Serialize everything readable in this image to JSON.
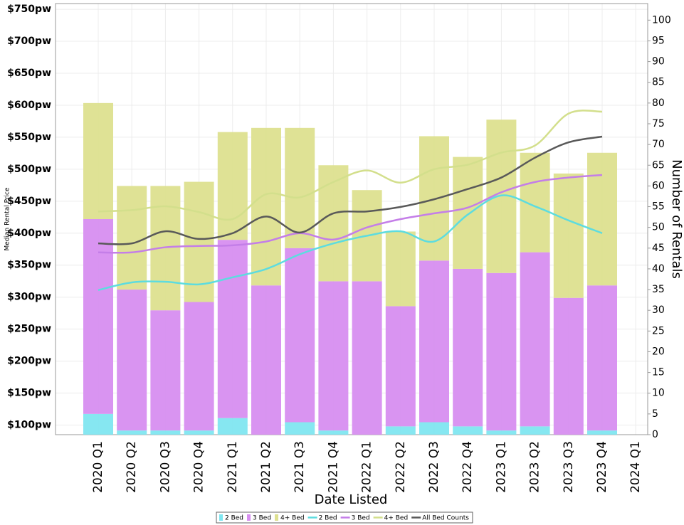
{
  "chart_data": {
    "type": "combo",
    "x_label": "Date Listed",
    "y_label": "Median Rental Price",
    "y2_label": "Number of Rentals",
    "categories": [
      "2020 Q1",
      "2020 Q2",
      "2020 Q3",
      "2020 Q4",
      "2021 Q1",
      "2021 Q2",
      "2021 Q3",
      "2021 Q4",
      "2022 Q1",
      "2022 Q2",
      "2022 Q3",
      "2022 Q4",
      "2023 Q1",
      "2023 Q2",
      "2023 Q3",
      "2023 Q4",
      "2024 Q1"
    ],
    "ylim": [
      85,
      759
    ],
    "yticks": [
      {
        "value": 100,
        "label": "$100pw"
      },
      {
        "value": 150,
        "label": "$150pw"
      },
      {
        "value": 200,
        "label": "$200pw"
      },
      {
        "value": 250,
        "label": "$250pw"
      },
      {
        "value": 300,
        "label": "$300pw"
      },
      {
        "value": 350,
        "label": "$350pw"
      },
      {
        "value": 400,
        "label": "$400pw"
      },
      {
        "value": 450,
        "label": "$450pw"
      },
      {
        "value": 500,
        "label": "$500pw"
      },
      {
        "value": 550,
        "label": "$550pw"
      },
      {
        "value": 600,
        "label": "$600pw"
      },
      {
        "value": 650,
        "label": "$650pw"
      },
      {
        "value": 700,
        "label": "$700pw"
      },
      {
        "value": 750,
        "label": "$750pw"
      }
    ],
    "y2lim": [
      0,
      104
    ],
    "y2ticks": [
      0,
      5,
      10,
      15,
      20,
      25,
      30,
      35,
      40,
      45,
      50,
      55,
      60,
      65,
      70,
      75,
      80,
      85,
      90,
      95,
      100
    ],
    "grid": true,
    "series": [
      {
        "name": "2 Bed",
        "kind": "bar",
        "axis": "y2",
        "color": "#7fe6f0",
        "values": [
          5,
          1,
          1,
          1,
          4,
          0,
          3,
          1,
          0,
          2,
          3,
          2,
          1,
          2,
          0,
          1,
          null
        ]
      },
      {
        "name": "3 Bed",
        "kind": "bar",
        "axis": "y2",
        "color": "#d78ef0",
        "values": [
          47,
          34,
          29,
          31,
          43,
          36,
          42,
          36,
          37,
          29,
          39,
          38,
          38,
          42,
          33,
          35,
          null
        ]
      },
      {
        "name": "4+ Bed",
        "kind": "bar",
        "axis": "y2",
        "color": "#dde08f",
        "values": [
          28,
          25,
          30,
          29,
          26,
          38,
          29,
          28,
          22,
          18,
          30,
          27,
          37,
          24,
          30,
          32,
          null
        ]
      },
      {
        "name": "2 Bed",
        "kind": "line",
        "axis": "y",
        "color": "#5ddcdf",
        "values": [
          311,
          323,
          324,
          320,
          331,
          344,
          367,
          384,
          396,
          403,
          387,
          429,
          459,
          442,
          420,
          400,
          null
        ]
      },
      {
        "name": "3 Bed",
        "kind": "line",
        "axis": "y",
        "color": "#c47ee8",
        "values": [
          370,
          370,
          378,
          380,
          381,
          387,
          400,
          390,
          409,
          422,
          431,
          440,
          464,
          480,
          487,
          491,
          null
        ]
      },
      {
        "name": "4+ Bed",
        "kind": "line",
        "axis": "y",
        "color": "#d3df8c",
        "values": [
          434,
          436,
          442,
          433,
          422,
          461,
          456,
          480,
          498,
          479,
          500,
          507,
          526,
          537,
          587,
          590,
          null
        ]
      },
      {
        "name": "All Bed Counts",
        "kind": "line",
        "axis": "y",
        "color": "#595959",
        "values": [
          384,
          384,
          403,
          391,
          400,
          426,
          401,
          431,
          434,
          441,
          453,
          469,
          487,
          518,
          542,
          551,
          null
        ]
      }
    ]
  }
}
